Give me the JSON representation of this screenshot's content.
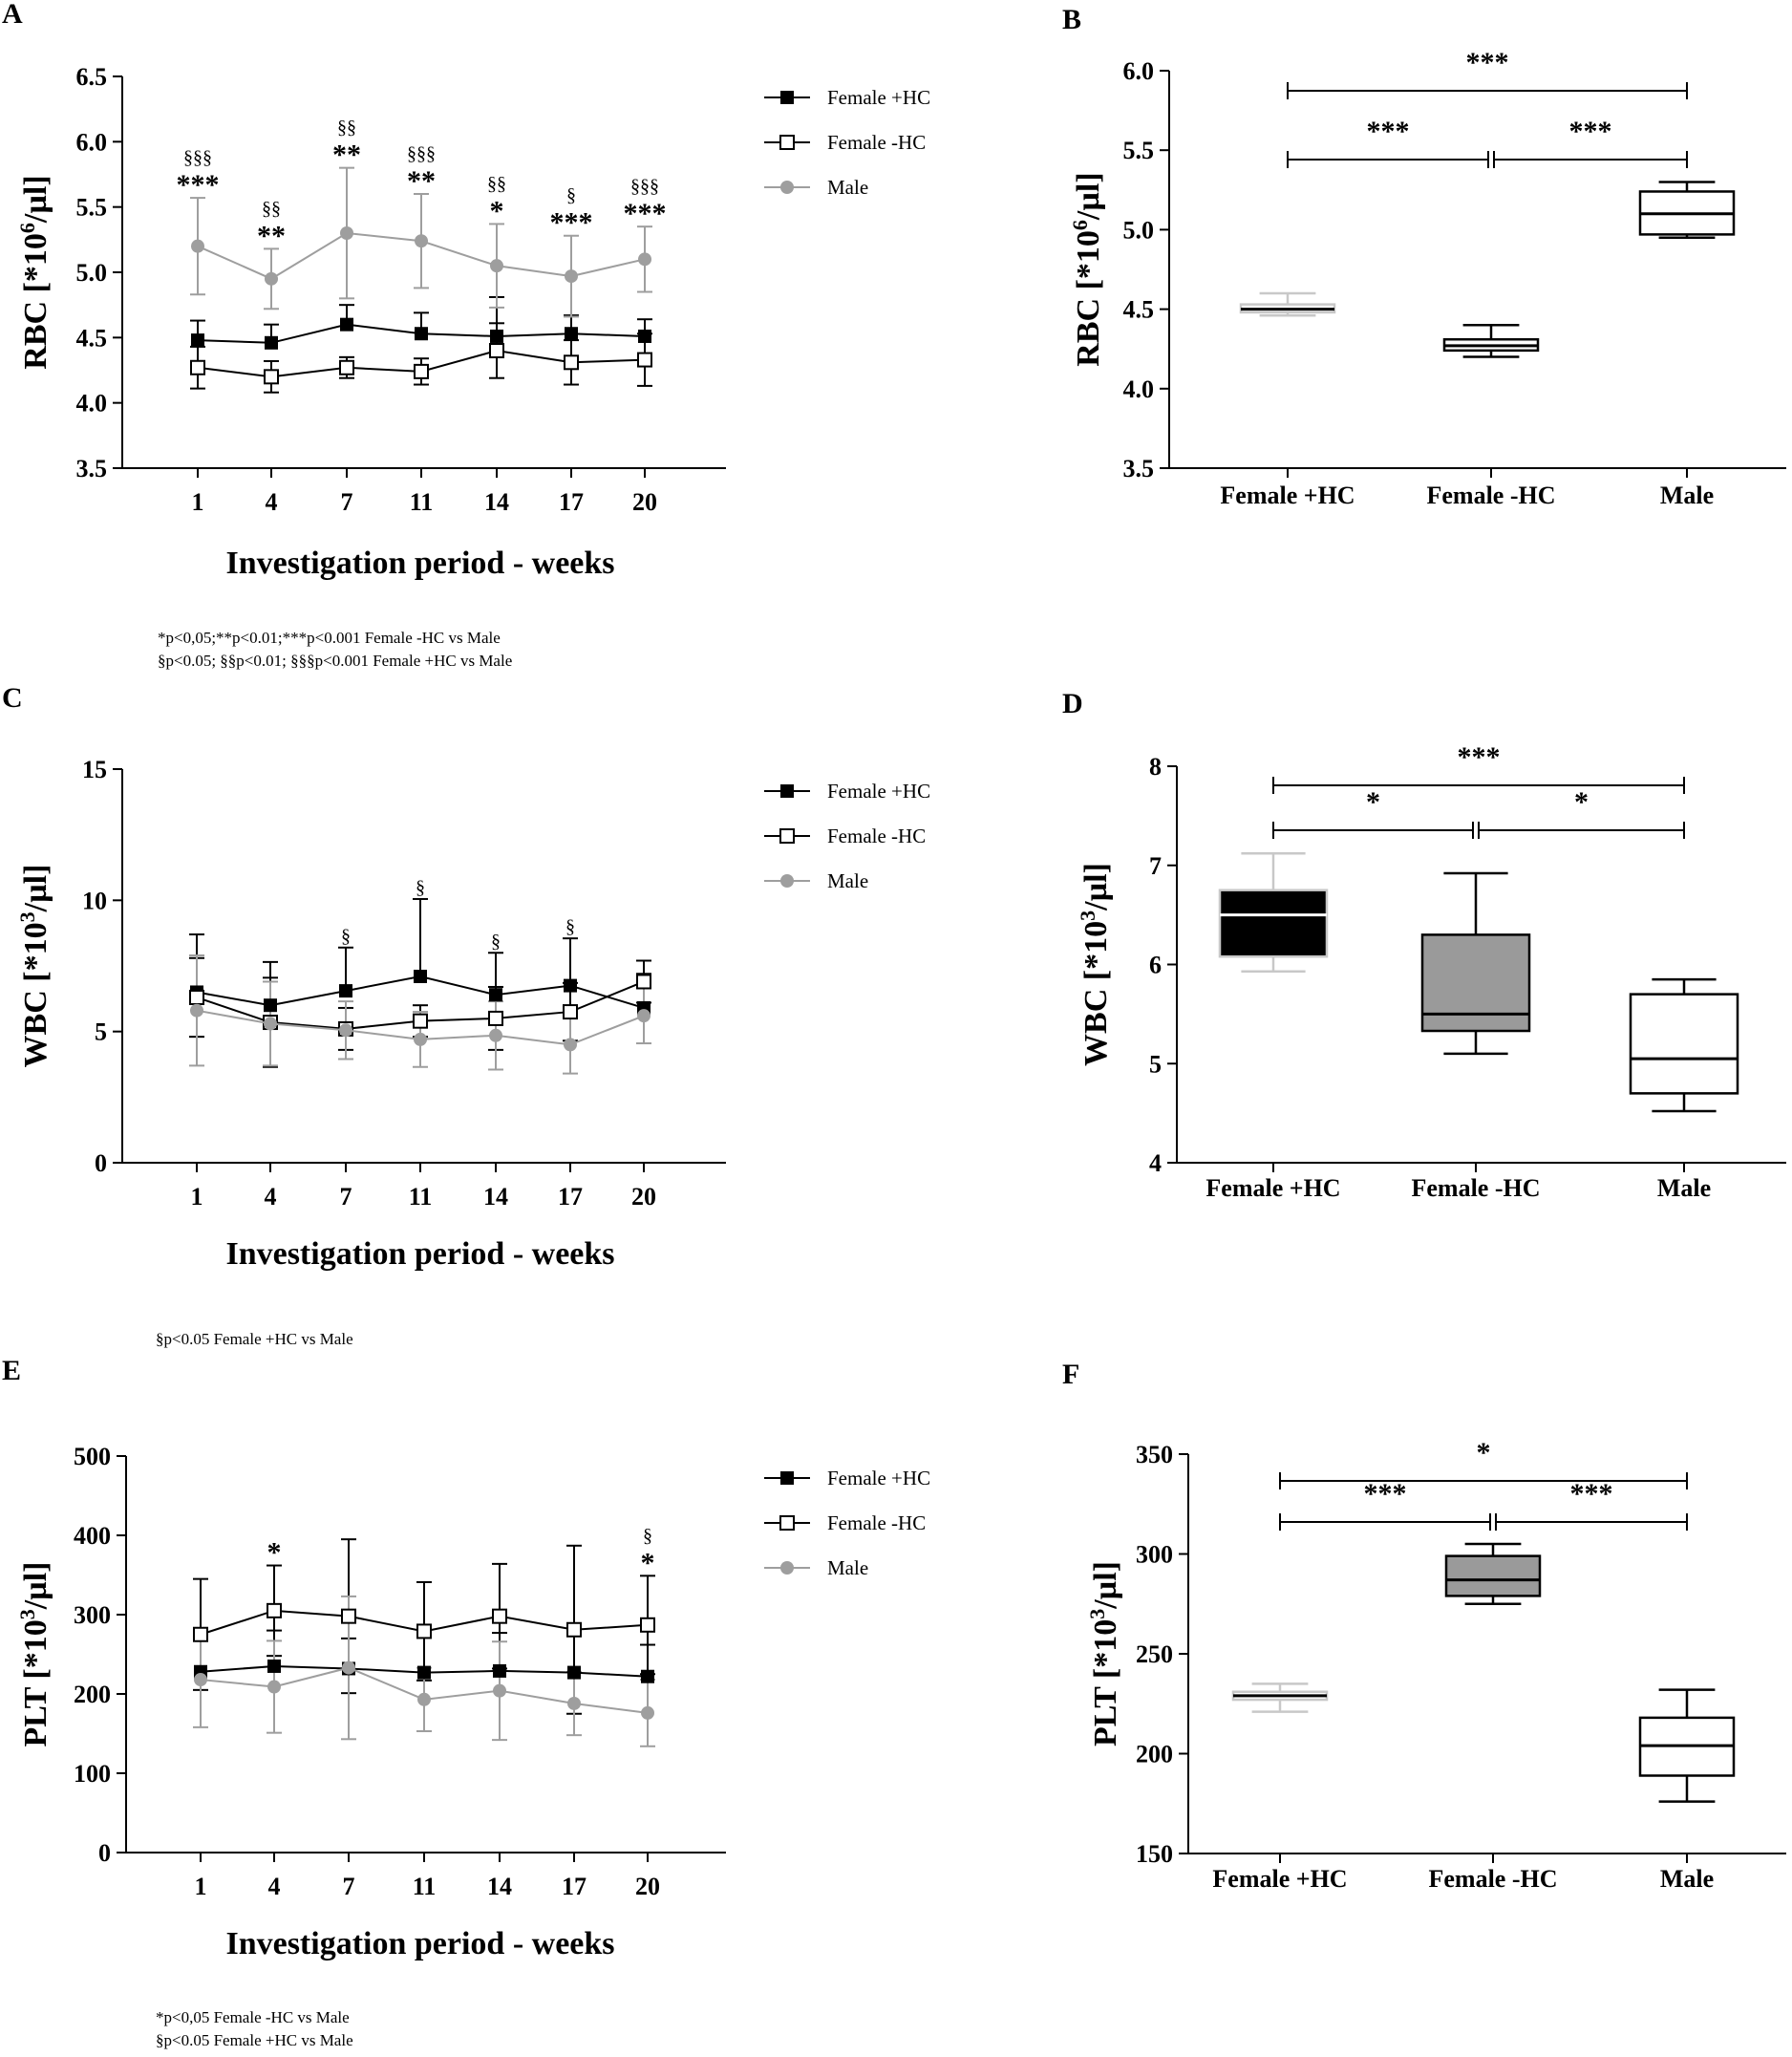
{
  "panel_letters": [
    "A",
    "B",
    "C",
    "D",
    "E",
    "F"
  ],
  "notes": {
    "A": [
      "*p<0,05;**p<0.01;***p<0.001 Female -HC vs  Male",
      "§p<0.05; §§p<0.01; §§§p<0.001 Female +HC vs Male"
    ],
    "C": [
      "§p<0.05 Female +HC vs Male"
    ],
    "E": [
      "*p<0,05 Female -HC vs  Male",
      "§p<0.05 Female +HC vs Male"
    ]
  },
  "colors": {
    "female_plus_hc": "#000000",
    "female_minus_hc": "#000000",
    "male": "#9e9e9e",
    "box_gray": "#9a9a9a"
  },
  "chart_data": [
    {
      "id": "A",
      "type": "line",
      "ylabel": "RBC [*10^6/µl]",
      "ylabel_main": "RBC [*10",
      "ylabel_sup": "6",
      "ylabel_unit": "/µl]",
      "xlabel": "Investigation period - weeks",
      "x": [
        "1",
        "4",
        "7",
        "11",
        "14",
        "17",
        "20"
      ],
      "ylim": [
        3.5,
        6.5
      ],
      "yticks": [
        "3.5",
        "4.0",
        "4.5",
        "5.0",
        "5.5",
        "6.0",
        "6.5"
      ],
      "ytick_values": [
        3.5,
        4.0,
        4.5,
        5.0,
        5.5,
        6.0,
        6.5
      ],
      "series": [
        {
          "name": "Female +HC",
          "marker": "filled-square",
          "values": [
            4.48,
            4.46,
            4.6,
            4.53,
            4.51,
            4.53,
            4.51
          ],
          "err": [
            0.15,
            0.14,
            0.15,
            0.16,
            0.3,
            0.14,
            0.13
          ]
        },
        {
          "name": "Female -HC",
          "marker": "open-square",
          "values": [
            4.27,
            4.2,
            4.27,
            4.24,
            4.4,
            4.31,
            4.33
          ],
          "err": [
            0.16,
            0.12,
            0.08,
            0.1,
            0.21,
            0.17,
            0.2
          ]
        },
        {
          "name": "Male",
          "marker": "gray-circle",
          "values": [
            5.2,
            4.95,
            5.3,
            5.24,
            5.05,
            4.97,
            5.1
          ],
          "err": [
            0.37,
            0.23,
            0.5,
            0.36,
            0.32,
            0.31,
            0.25
          ]
        }
      ],
      "annotations": [
        {
          "x": "1",
          "star": "***",
          "sect": "§§§"
        },
        {
          "x": "4",
          "star": "**",
          "sect": "§§"
        },
        {
          "x": "7",
          "star": "**",
          "sect": "§§"
        },
        {
          "x": "11",
          "star": "**",
          "sect": "§§§"
        },
        {
          "x": "14",
          "star": "*",
          "sect": "§§"
        },
        {
          "x": "17",
          "star": "***",
          "sect": "§"
        },
        {
          "x": "20",
          "star": "***",
          "sect": "§§§"
        }
      ]
    },
    {
      "id": "B",
      "type": "box",
      "ylabel": "RBC [*10^6/µl]",
      "ylabel_main": "RBC [*10",
      "ylabel_sup": "6",
      "ylabel_unit": "/µl]",
      "categories": [
        "Female +HC",
        "Female -HC",
        "Male"
      ],
      "ylim": [
        3.5,
        6.0
      ],
      "yticks": [
        "3.5",
        "4.0",
        "4.5",
        "5.0",
        "5.5",
        "6.0"
      ],
      "ytick_values": [
        3.5,
        4.0,
        4.5,
        5.0,
        5.5,
        6.0
      ],
      "boxes": [
        {
          "min": 4.46,
          "q1": 4.48,
          "median": 4.5,
          "q3": 4.53,
          "max": 4.6,
          "fill": "#ffffff",
          "stroke": "#c8c8c8"
        },
        {
          "min": 4.2,
          "q1": 4.24,
          "median": 4.27,
          "q3": 4.31,
          "max": 4.4,
          "fill": "#ffffff",
          "stroke": "#000000"
        },
        {
          "min": 4.95,
          "q1": 4.97,
          "median": 5.1,
          "q3": 5.24,
          "max": 5.3,
          "fill": "#ffffff",
          "stroke": "#000000"
        }
      ],
      "brackets": [
        {
          "from": 0,
          "to": 2,
          "label": "***",
          "level": 1
        },
        {
          "from": 0,
          "to": 1,
          "label": "***",
          "level": 0
        },
        {
          "from": 1,
          "to": 2,
          "label": "***",
          "level": 0
        }
      ]
    },
    {
      "id": "C",
      "type": "line",
      "ylabel": "WBC [*10^3/µl]",
      "ylabel_main": "WBC [*10",
      "ylabel_sup": "3",
      "ylabel_unit": "/µl]",
      "xlabel": "Investigation period - weeks",
      "x": [
        "1",
        "4",
        "7",
        "11",
        "14",
        "17",
        "20"
      ],
      "ylim": [
        0,
        15
      ],
      "yticks": [
        "0",
        "5",
        "10",
        "15"
      ],
      "ytick_values": [
        0,
        5,
        10,
        15
      ],
      "series": [
        {
          "name": "Female +HC",
          "marker": "filled-square",
          "values": [
            6.5,
            6.0,
            6.55,
            7.1,
            6.4,
            6.75,
            5.9
          ],
          "err": [
            2.2,
            1.65,
            1.65,
            2.95,
            1.6,
            1.8,
            1.3
          ]
        },
        {
          "name": "Female -HC",
          "marker": "open-square",
          "values": [
            6.3,
            5.35,
            5.1,
            5.4,
            5.5,
            5.75,
            6.9
          ],
          "err": [
            1.5,
            1.7,
            0.8,
            0.6,
            1.2,
            1.1,
            0.8
          ]
        },
        {
          "name": "Male",
          "marker": "gray-circle",
          "values": [
            5.8,
            5.3,
            5.05,
            4.7,
            4.85,
            4.5,
            5.6
          ],
          "err": [
            2.1,
            1.6,
            1.1,
            1.05,
            1.3,
            1.1,
            1.05
          ]
        }
      ],
      "annotations": [
        {
          "x": "7",
          "star": "",
          "sect": "§"
        },
        {
          "x": "11",
          "star": "",
          "sect": "§"
        },
        {
          "x": "14",
          "star": "",
          "sect": "§"
        },
        {
          "x": "17",
          "star": "",
          "sect": "§"
        }
      ]
    },
    {
      "id": "D",
      "type": "box",
      "ylabel": "WBC [*10^3/µl]",
      "ylabel_main": "WBC [*10",
      "ylabel_sup": "3",
      "ylabel_unit": "/µl]",
      "categories": [
        "Female +HC",
        "Female -HC",
        "Male"
      ],
      "ylim": [
        4,
        8
      ],
      "yticks": [
        "4",
        "5",
        "6",
        "7",
        "8"
      ],
      "ytick_values": [
        4,
        5,
        6,
        7,
        8
      ],
      "boxes": [
        {
          "min": 5.93,
          "q1": 6.08,
          "median": 6.5,
          "q3": 6.75,
          "max": 7.12,
          "fill": "#000000",
          "stroke": "#c8c8c8"
        },
        {
          "min": 5.1,
          "q1": 5.33,
          "median": 5.5,
          "q3": 6.3,
          "max": 6.92,
          "fill": "#9a9a9a",
          "stroke": "#000000"
        },
        {
          "min": 4.52,
          "q1": 4.7,
          "median": 5.05,
          "q3": 5.7,
          "max": 5.85,
          "fill": "#ffffff",
          "stroke": "#000000"
        }
      ],
      "brackets": [
        {
          "from": 0,
          "to": 2,
          "label": "***",
          "level": 1
        },
        {
          "from": 0,
          "to": 1,
          "label": "*",
          "level": 0
        },
        {
          "from": 1,
          "to": 2,
          "label": "*",
          "level": 0
        }
      ]
    },
    {
      "id": "E",
      "type": "line",
      "ylabel": "PLT [*10^3/µl]",
      "ylabel_main": "PLT [*10",
      "ylabel_sup": "3",
      "ylabel_unit": "/µl]",
      "xlabel": "Investigation period - weeks",
      "x": [
        "1",
        "4",
        "7",
        "11",
        "14",
        "17",
        "20"
      ],
      "ylim": [
        0,
        500
      ],
      "yticks": [
        "0",
        "100",
        "200",
        "300",
        "400",
        "500"
      ],
      "ytick_values": [
        0,
        100,
        200,
        300,
        400,
        500
      ],
      "series": [
        {
          "name": "Female +HC",
          "marker": "filled-square",
          "values": [
            228,
            235,
            232,
            227,
            229,
            227,
            222
          ],
          "err": [
            45,
            45,
            38,
            50,
            48,
            50,
            40
          ]
        },
        {
          "name": "Female -HC",
          "marker": "open-square",
          "values": [
            275,
            305,
            298,
            279,
            298,
            281,
            287
          ],
          "err": [
            70,
            57,
            97,
            62,
            66,
            106,
            62
          ]
        },
        {
          "name": "Male",
          "marker": "gray-circle",
          "values": [
            218,
            209,
            233,
            193,
            204,
            188,
            176
          ],
          "err": [
            60,
            58,
            90,
            40,
            62,
            40,
            42
          ]
        }
      ],
      "annotations": [
        {
          "x": "4",
          "star": "*",
          "sect": ""
        },
        {
          "x": "20",
          "star": "*",
          "sect": "§"
        }
      ]
    },
    {
      "id": "F",
      "type": "box",
      "ylabel": "PLT [*10^3/µl]",
      "ylabel_main": "PLT [*10",
      "ylabel_sup": "3",
      "ylabel_unit": "/µl]",
      "categories": [
        "Female +HC",
        "Female -HC",
        "Male"
      ],
      "ylim": [
        150,
        350
      ],
      "yticks": [
        "150",
        "200",
        "250",
        "300",
        "350"
      ],
      "ytick_values": [
        150,
        200,
        250,
        300,
        350
      ],
      "boxes": [
        {
          "min": 221,
          "q1": 227,
          "median": 229,
          "q3": 231,
          "max": 235,
          "fill": "#ffffff",
          "stroke": "#c8c8c8"
        },
        {
          "min": 275,
          "q1": 279,
          "median": 287,
          "q3": 299,
          "max": 305,
          "fill": "#9a9a9a",
          "stroke": "#000000"
        },
        {
          "min": 176,
          "q1": 189,
          "median": 204,
          "q3": 218,
          "max": 232,
          "fill": "#ffffff",
          "stroke": "#000000"
        }
      ],
      "brackets": [
        {
          "from": 0,
          "to": 2,
          "label": "*",
          "level": 1
        },
        {
          "from": 0,
          "to": 1,
          "label": "***",
          "level": 0
        },
        {
          "from": 1,
          "to": 2,
          "label": "***",
          "level": 0
        }
      ]
    }
  ]
}
